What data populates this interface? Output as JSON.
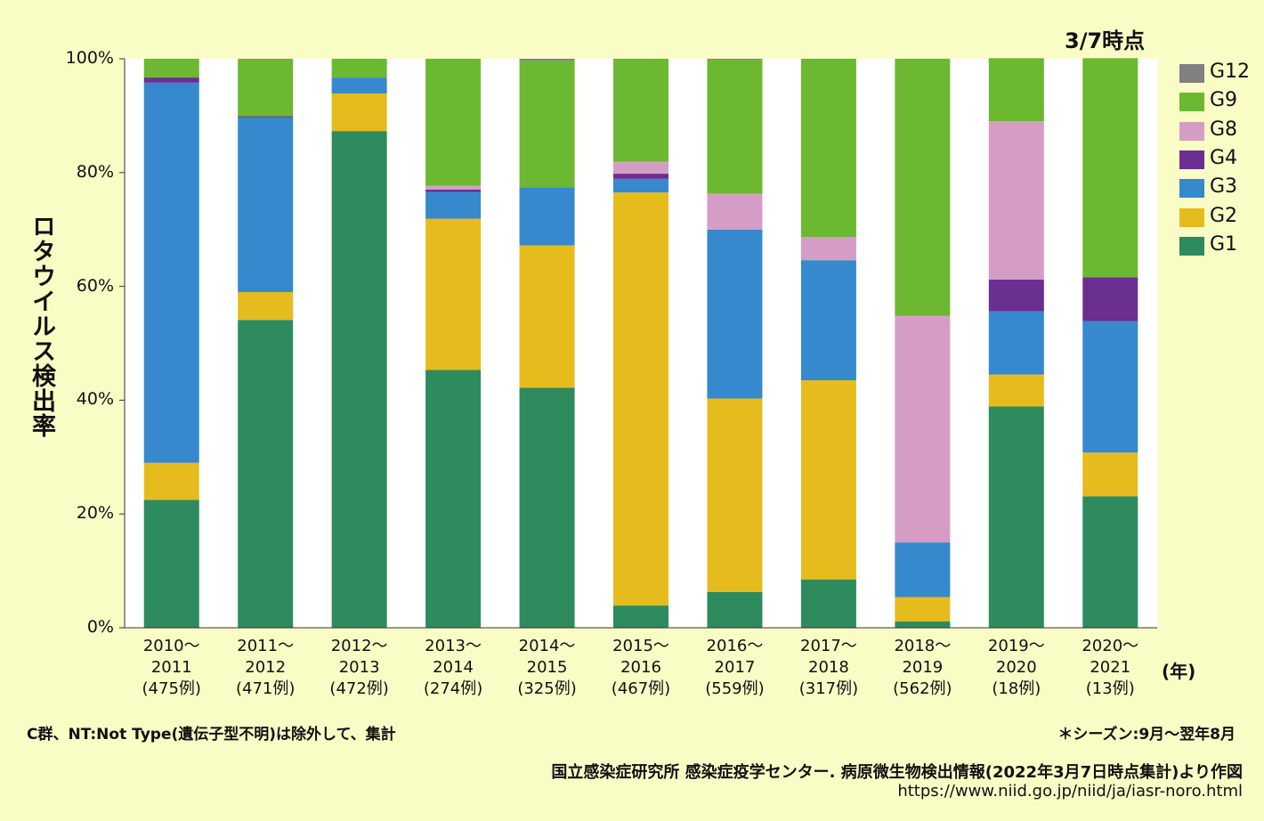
{
  "chart_data": {
    "type": "bar",
    "stacked": true,
    "as_of": "3/7時点",
    "ylabel": "ロタウイルス検出率",
    "xunit": "(年)",
    "ylim": [
      0,
      100
    ],
    "yticks": [
      "0%",
      "20%",
      "40%",
      "60%",
      "80%",
      "100%"
    ],
    "categories": [
      {
        "line1": "2010～",
        "line2": "2011",
        "line3": "(475例)"
      },
      {
        "line1": "2011～",
        "line2": "2012",
        "line3": "(471例)"
      },
      {
        "line1": "2012～",
        "line2": "2013",
        "line3": "(472例)"
      },
      {
        "line1": "2013～",
        "line2": "2014",
        "line3": "(274例)"
      },
      {
        "line1": "2014～",
        "line2": "2015",
        "line3": "(325例)"
      },
      {
        "line1": "2015～",
        "line2": "2016",
        "line3": "(467例)"
      },
      {
        "line1": "2016～",
        "line2": "2017",
        "line3": "(559例)"
      },
      {
        "line1": "2017～",
        "line2": "2018",
        "line3": "(317例)"
      },
      {
        "line1": "2018～",
        "line2": "2019",
        "line3": "(562例)"
      },
      {
        "line1": "2019～",
        "line2": "2020",
        "line3": "(18例)"
      },
      {
        "line1": "2020～",
        "line2": "2021",
        "line3": "(13例)"
      }
    ],
    "series": [
      {
        "name": "G1",
        "color": "#2e8b5d",
        "values": [
          22.5,
          54.1,
          87.3,
          45.3,
          42.2,
          3.9,
          6.3,
          8.5,
          1.1,
          38.9,
          23.1
        ]
      },
      {
        "name": "G2",
        "color": "#e6bb1e",
        "values": [
          6.5,
          4.9,
          6.6,
          26.6,
          25.0,
          72.6,
          34.0,
          35.0,
          4.3,
          5.6,
          7.7
        ]
      },
      {
        "name": "G3",
        "color": "#3689cc",
        "values": [
          66.8,
          30.7,
          2.8,
          4.7,
          10.2,
          2.4,
          29.7,
          21.1,
          9.6,
          11.1,
          23.1
        ]
      },
      {
        "name": "G4",
        "color": "#6b2e91",
        "values": [
          0.9,
          0.2,
          0,
          0.4,
          0,
          0.9,
          0,
          0,
          0,
          5.6,
          7.7
        ]
      },
      {
        "name": "G8",
        "color": "#d59dc6",
        "values": [
          0,
          0,
          0,
          0.7,
          0,
          2.1,
          6.3,
          4.1,
          39.8,
          27.8,
          0
        ]
      },
      {
        "name": "G9",
        "color": "#6cb830",
        "values": [
          3.3,
          10.0,
          3.3,
          22.3,
          22.3,
          18.1,
          23.5,
          31.3,
          45.2,
          11.1,
          38.5
        ]
      },
      {
        "name": "G12",
        "color": "#808080",
        "values": [
          0,
          0.1,
          0,
          0,
          0.3,
          0,
          0.2,
          0,
          0,
          0,
          0
        ]
      }
    ],
    "legend_order": [
      "G12",
      "G9",
      "G8",
      "G4",
      "G3",
      "G2",
      "G1"
    ],
    "legend_position": "right"
  },
  "footnotes": {
    "left": "C群、NT:Not Type(遺伝子型不明)は除外して、集計",
    "right": "＊シーズン:9月～翌年8月",
    "source": "国立感染症研究所 感染症疫学センター. 病原微生物検出情報(2022年3月7日時点集計)より作図",
    "url": "https://www.niid.go.jp/niid/ja/iasr-noro.html"
  }
}
